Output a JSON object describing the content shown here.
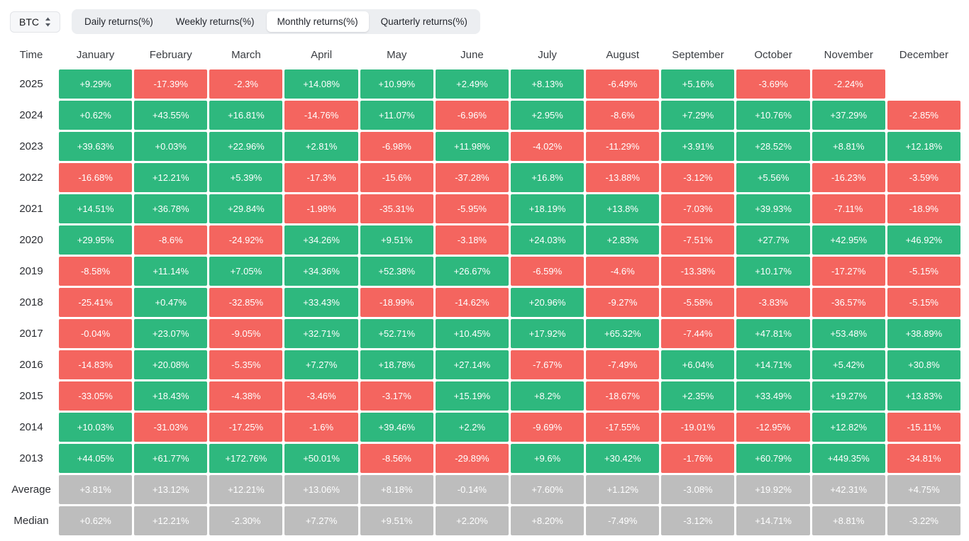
{
  "toolbar": {
    "symbol": "BTC",
    "tabs": [
      {
        "label": "Daily returns(%)",
        "active": false
      },
      {
        "label": "Weekly returns(%)",
        "active": false
      },
      {
        "label": "Monthly returns(%)",
        "active": true
      },
      {
        "label": "Quarterly returns(%)",
        "active": false
      }
    ]
  },
  "colors": {
    "positive": "#2eb87e",
    "negative": "#f4655f",
    "summary": "#bdbdbd",
    "tab_bar_bg": "#eceef1",
    "active_tab_bg": "#ffffff"
  },
  "chart_data": {
    "type": "heatmap",
    "title": "Monthly returns(%)",
    "time_header": "Time",
    "columns": [
      "January",
      "February",
      "March",
      "April",
      "May",
      "June",
      "July",
      "August",
      "September",
      "October",
      "November",
      "December"
    ],
    "color_rules": {
      "positive_cells": "green",
      "negative_cells": "red",
      "summary_rows": "gray",
      "missing": "blank"
    },
    "rows": [
      {
        "label": "2025",
        "type": "year",
        "values": [
          "+9.29%",
          "-17.39%",
          "-2.3%",
          "+14.08%",
          "+10.99%",
          "+2.49%",
          "+8.13%",
          "-6.49%",
          "+5.16%",
          "-3.69%",
          "-2.24%",
          ""
        ]
      },
      {
        "label": "2024",
        "type": "year",
        "values": [
          "+0.62%",
          "+43.55%",
          "+16.81%",
          "-14.76%",
          "+11.07%",
          "-6.96%",
          "+2.95%",
          "-8.6%",
          "+7.29%",
          "+10.76%",
          "+37.29%",
          "-2.85%"
        ]
      },
      {
        "label": "2023",
        "type": "year",
        "values": [
          "+39.63%",
          "+0.03%",
          "+22.96%",
          "+2.81%",
          "-6.98%",
          "+11.98%",
          "-4.02%",
          "-11.29%",
          "+3.91%",
          "+28.52%",
          "+8.81%",
          "+12.18%"
        ]
      },
      {
        "label": "2022",
        "type": "year",
        "values": [
          "-16.68%",
          "+12.21%",
          "+5.39%",
          "-17.3%",
          "-15.6%",
          "-37.28%",
          "+16.8%",
          "-13.88%",
          "-3.12%",
          "+5.56%",
          "-16.23%",
          "-3.59%"
        ]
      },
      {
        "label": "2021",
        "type": "year",
        "values": [
          "+14.51%",
          "+36.78%",
          "+29.84%",
          "-1.98%",
          "-35.31%",
          "-5.95%",
          "+18.19%",
          "+13.8%",
          "-7.03%",
          "+39.93%",
          "-7.11%",
          "-18.9%"
        ]
      },
      {
        "label": "2020",
        "type": "year",
        "values": [
          "+29.95%",
          "-8.6%",
          "-24.92%",
          "+34.26%",
          "+9.51%",
          "-3.18%",
          "+24.03%",
          "+2.83%",
          "-7.51%",
          "+27.7%",
          "+42.95%",
          "+46.92%"
        ]
      },
      {
        "label": "2019",
        "type": "year",
        "values": [
          "-8.58%",
          "+11.14%",
          "+7.05%",
          "+34.36%",
          "+52.38%",
          "+26.67%",
          "-6.59%",
          "-4.6%",
          "-13.38%",
          "+10.17%",
          "-17.27%",
          "-5.15%"
        ]
      },
      {
        "label": "2018",
        "type": "year",
        "values": [
          "-25.41%",
          "+0.47%",
          "-32.85%",
          "+33.43%",
          "-18.99%",
          "-14.62%",
          "+20.96%",
          "-9.27%",
          "-5.58%",
          "-3.83%",
          "-36.57%",
          "-5.15%"
        ]
      },
      {
        "label": "2017",
        "type": "year",
        "values": [
          "-0.04%",
          "+23.07%",
          "-9.05%",
          "+32.71%",
          "+52.71%",
          "+10.45%",
          "+17.92%",
          "+65.32%",
          "-7.44%",
          "+47.81%",
          "+53.48%",
          "+38.89%"
        ]
      },
      {
        "label": "2016",
        "type": "year",
        "values": [
          "-14.83%",
          "+20.08%",
          "-5.35%",
          "+7.27%",
          "+18.78%",
          "+27.14%",
          "-7.67%",
          "-7.49%",
          "+6.04%",
          "+14.71%",
          "+5.42%",
          "+30.8%"
        ]
      },
      {
        "label": "2015",
        "type": "year",
        "values": [
          "-33.05%",
          "+18.43%",
          "-4.38%",
          "-3.46%",
          "-3.17%",
          "+15.19%",
          "+8.2%",
          "-18.67%",
          "+2.35%",
          "+33.49%",
          "+19.27%",
          "+13.83%"
        ]
      },
      {
        "label": "2014",
        "type": "year",
        "values": [
          "+10.03%",
          "-31.03%",
          "-17.25%",
          "-1.6%",
          "+39.46%",
          "+2.2%",
          "-9.69%",
          "-17.55%",
          "-19.01%",
          "-12.95%",
          "+12.82%",
          "-15.11%"
        ]
      },
      {
        "label": "2013",
        "type": "year",
        "values": [
          "+44.05%",
          "+61.77%",
          "+172.76%",
          "+50.01%",
          "-8.56%",
          "-29.89%",
          "+9.6%",
          "+30.42%",
          "-1.76%",
          "+60.79%",
          "+449.35%",
          "-34.81%"
        ]
      },
      {
        "label": "Average",
        "type": "summary",
        "values": [
          "+3.81%",
          "+13.12%",
          "+12.21%",
          "+13.06%",
          "+8.18%",
          "-0.14%",
          "+7.60%",
          "+1.12%",
          "-3.08%",
          "+19.92%",
          "+42.31%",
          "+4.75%"
        ]
      },
      {
        "label": "Median",
        "type": "summary",
        "values": [
          "+0.62%",
          "+12.21%",
          "-2.30%",
          "+7.27%",
          "+9.51%",
          "+2.20%",
          "+8.20%",
          "-7.49%",
          "-3.12%",
          "+14.71%",
          "+8.81%",
          "-3.22%"
        ]
      }
    ]
  }
}
